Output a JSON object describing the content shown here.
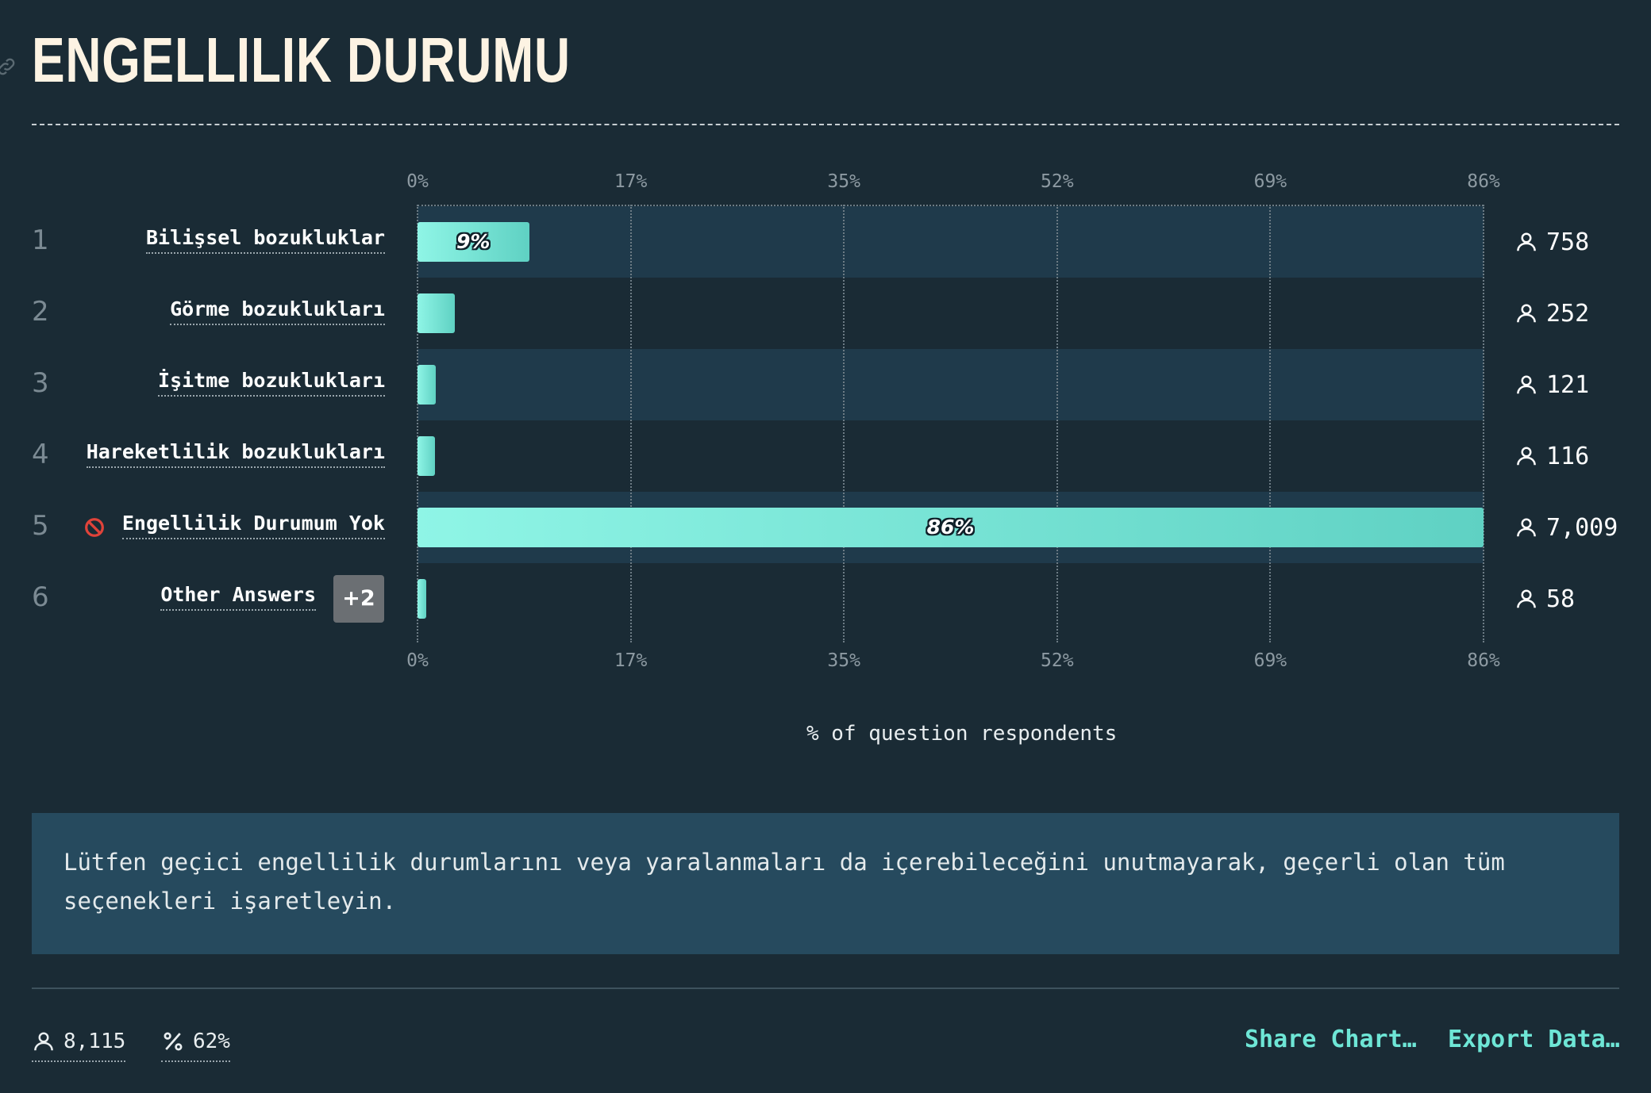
{
  "title": "ENGELLILIK DURUMU",
  "chart_data": {
    "type": "bar",
    "orientation": "horizontal",
    "categories": [
      "Bilişsel bozukluklar",
      "Görme bozuklukları",
      "İşitme bozuklukları",
      "Hareketlilik bozuklukları",
      "Engellilik Durumum Yok",
      "Other Answers"
    ],
    "values": [
      9,
      3,
      1.5,
      1.4,
      86,
      0.7
    ],
    "counts": [
      "758",
      "252",
      "121",
      "116",
      "7,009",
      "58"
    ],
    "bar_labels": [
      "9%",
      "",
      "",
      "",
      "86%",
      ""
    ],
    "ranks": [
      "1",
      "2",
      "3",
      "4",
      "5",
      "6"
    ],
    "xlim": [
      0,
      86
    ],
    "x_ticks": [
      "0%",
      "17%",
      "35%",
      "52%",
      "69%",
      "86%"
    ],
    "xlabel": "% of question respondents",
    "other_answers_badge": "+2",
    "bar_colors": [
      "#8ff5e6",
      "#5fd1c3"
    ],
    "grid": true
  },
  "icons": {
    "link": "link-icon",
    "person": "person-icon",
    "percent": "percent-icon",
    "no_entry": "no-entry-icon"
  },
  "note": "Lütfen geçici engellilik durumlarını veya yaralanmaları da içerebileceğini unutmayarak, geçerli olan tüm seçenekleri işaretleyin.",
  "footer": {
    "respondents": "8,115",
    "percent": "62%",
    "share_label": "Share Chart…",
    "export_label": "Export Data…"
  },
  "colors": {
    "background": "#1a2b35",
    "accent": "#6ee6d6",
    "title": "#fdf3e3",
    "note_background": "#264a5e"
  }
}
